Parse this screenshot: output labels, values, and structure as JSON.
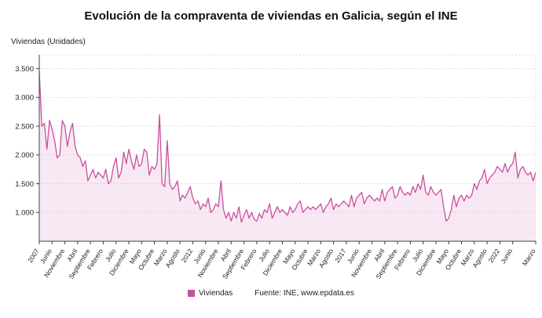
{
  "title": "Evolución de la compraventa de viviendas en Galicia, según el INE",
  "y_axis_unit_label": "Viviendas (Unidades)",
  "legend": {
    "series_label": "Viviendas",
    "source": "Fuente: INE, www.epdata.es"
  },
  "colors": {
    "line": "#c8509d",
    "fill": "#f8e8f3",
    "grid": "#cfcfcf",
    "axis": "#444444",
    "text": "#222222"
  },
  "chart_data": {
    "type": "area",
    "title": "Evolución de la compraventa de viviendas en Galicia, según el INE",
    "xlabel": "",
    "ylabel": "Viviendas (Unidades)",
    "ylim": [
      500,
      3500
    ],
    "grid": true,
    "legend_position": "bottom",
    "frequency": "monthly",
    "x_start": "2007-01",
    "x_end": "2023-03",
    "y_ticks": [
      1000,
      1500,
      2000,
      2500,
      3000,
      3500
    ],
    "y_tick_labels": [
      "1.000",
      "1.500",
      "2.000",
      "2.500",
      "3.000",
      "3.500"
    ],
    "x_tick_indices": [
      0,
      5,
      10,
      15,
      20,
      25,
      30,
      35,
      40,
      45,
      50,
      55,
      60,
      65,
      70,
      75,
      80,
      85,
      90,
      95,
      100,
      105,
      110,
      115,
      120,
      125,
      130,
      135,
      140,
      145,
      150,
      155,
      160,
      165,
      170,
      175,
      180,
      185,
      194
    ],
    "x_tick_labels": [
      "2007",
      "Junio",
      "Noviembre",
      "Abril",
      "Septiembre",
      "Febrero",
      "Julio",
      "Diciembre",
      "Mayo",
      "Octubre",
      "Marzo",
      "Agosto",
      "2012",
      "Junio",
      "Noviembre",
      "Abril",
      "Septiembre",
      "Febrero",
      "Julio",
      "Diciembre",
      "Mayo",
      "Octubre",
      "Marzo",
      "Agosto",
      "2017",
      "Junio",
      "Noviembre",
      "Abril",
      "Septiembre",
      "Febrero",
      "Julio",
      "Diciembre",
      "Mayo",
      "Octubre",
      "Marzo",
      "Agosto",
      "2022",
      "Junio",
      "Marzo"
    ],
    "series_name": "Viviendas",
    "values": [
      3450,
      2500,
      2550,
      2100,
      2600,
      2450,
      2250,
      1950,
      2000,
      2600,
      2500,
      2150,
      2400,
      2550,
      2150,
      2000,
      1950,
      1800,
      1900,
      1550,
      1650,
      1750,
      1600,
      1700,
      1650,
      1600,
      1750,
      1500,
      1550,
      1800,
      1950,
      1600,
      1700,
      2050,
      1850,
      2100,
      1900,
      1750,
      2000,
      1800,
      1850,
      2100,
      2050,
      1650,
      1800,
      1750,
      1850,
      2700,
      1500,
      1450,
      2250,
      1500,
      1400,
      1450,
      1550,
      1200,
      1300,
      1250,
      1350,
      1450,
      1250,
      1150,
      1200,
      1050,
      1150,
      1100,
      1250,
      1000,
      1050,
      1150,
      1100,
      1550,
      1050,
      900,
      1000,
      850,
      1000,
      900,
      1100,
      830,
      950,
      1050,
      900,
      1000,
      880,
      850,
      980,
      900,
      1050,
      1000,
      1150,
      900,
      1000,
      1100,
      1000,
      1050,
      1000,
      950,
      1100,
      1000,
      1050,
      1150,
      1200,
      1000,
      1050,
      1100,
      1050,
      1100,
      1050,
      1100,
      1150,
      1000,
      1100,
      1150,
      1250,
      1050,
      1150,
      1100,
      1150,
      1200,
      1150,
      1100,
      1300,
      1100,
      1250,
      1300,
      1350,
      1150,
      1250,
      1300,
      1250,
      1200,
      1250,
      1200,
      1400,
      1200,
      1350,
      1400,
      1450,
      1250,
      1300,
      1450,
      1350,
      1300,
      1350,
      1300,
      1450,
      1350,
      1500,
      1400,
      1650,
      1350,
      1300,
      1450,
      1350,
      1300,
      1350,
      1400,
      1100,
      850,
      900,
      1050,
      1300,
      1100,
      1250,
      1300,
      1200,
      1300,
      1250,
      1300,
      1500,
      1400,
      1550,
      1600,
      1750,
      1500,
      1600,
      1650,
      1700,
      1800,
      1750,
      1700,
      1850,
      1700,
      1800,
      1850,
      2050,
      1600,
      1750,
      1800,
      1700,
      1650,
      1700,
      1550,
      1700
    ]
  }
}
